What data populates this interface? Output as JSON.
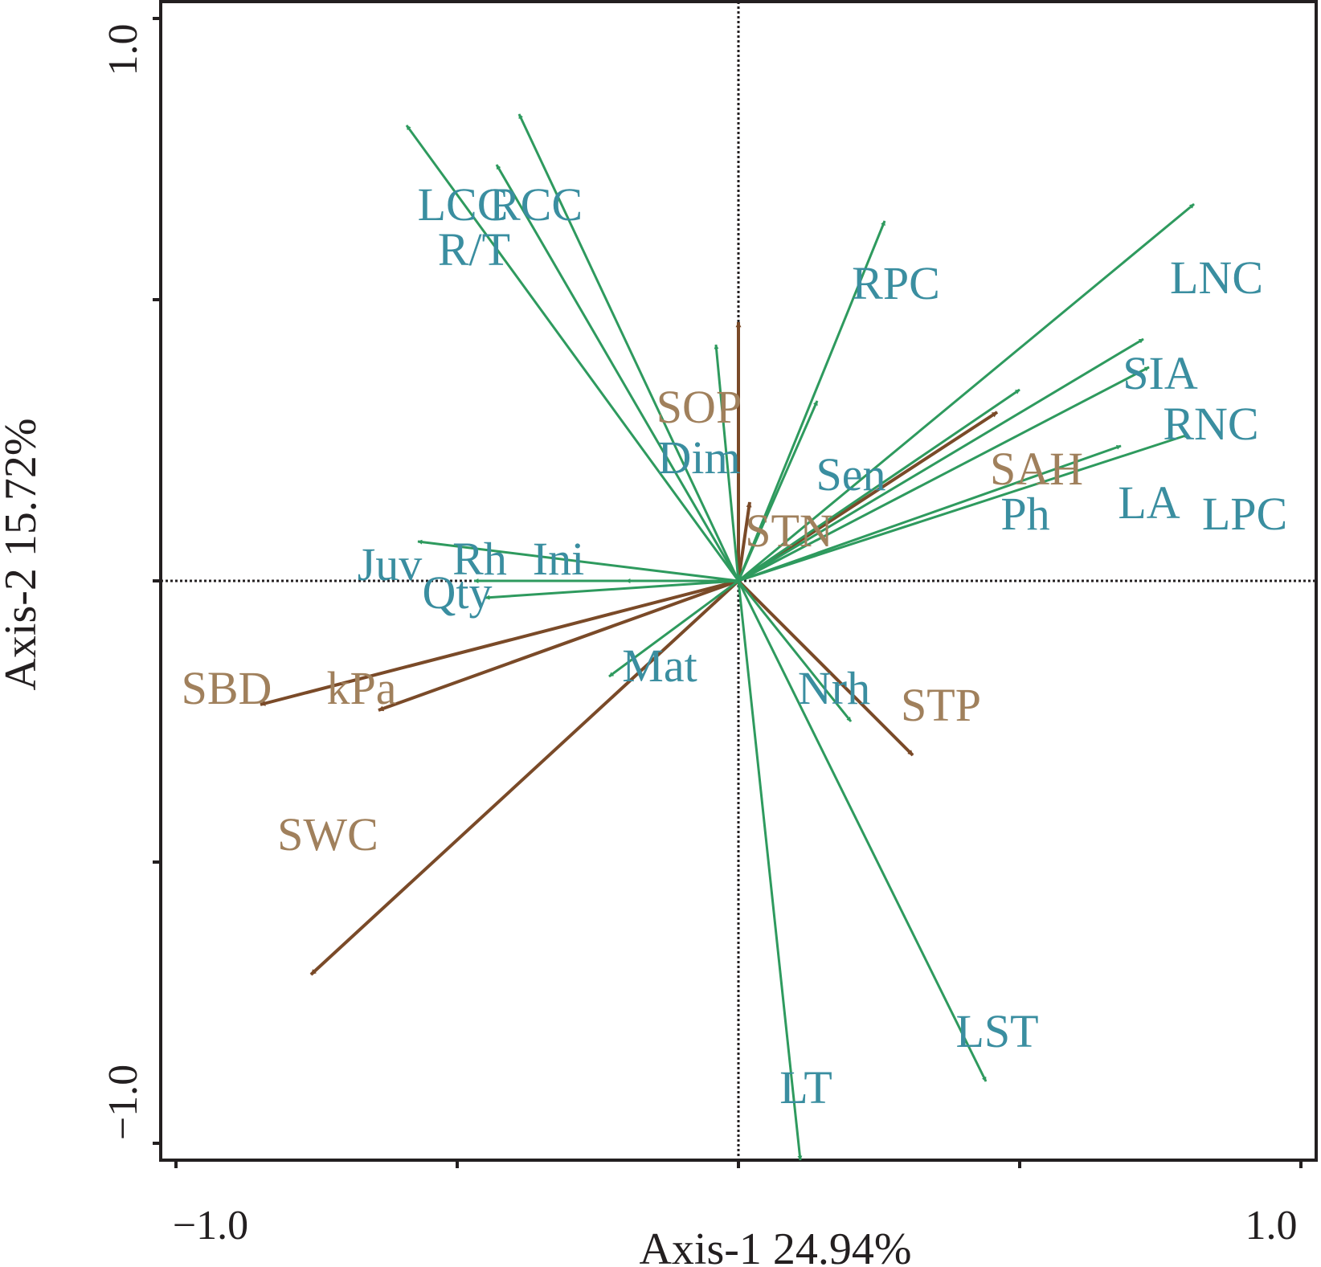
{
  "chart_data": {
    "type": "scatter",
    "subtype": "biplot-vectors",
    "xlabel": "Axis-1 24.94%",
    "ylabel": "Axis-2 15.72%",
    "xlim": [
      -1.0,
      1.0
    ],
    "ylim": [
      -1.0,
      1.0
    ],
    "x_tick_labels": [
      "−1.0",
      "1.0"
    ],
    "y_tick_labels": [
      "1.0",
      "−1.0"
    ],
    "grid": false,
    "zero_lines": "dotted",
    "colors": {
      "trait": "#3a8ea0",
      "trait_arrow": "#2e9a5e",
      "environment": "#a0805c",
      "environment_arrow": "#7a4a28",
      "axis": "#231f20"
    },
    "series": [
      {
        "group": "trait",
        "vectors": [
          {
            "label": "LCC",
            "x": -0.59,
            "y": 0.81
          },
          {
            "label": "RCC",
            "x": -0.39,
            "y": 0.83
          },
          {
            "label": "R/T",
            "x": -0.43,
            "y": 0.74
          },
          {
            "label": "RPC",
            "x": 0.26,
            "y": 0.64
          },
          {
            "label": "LNC",
            "x": 0.81,
            "y": 0.67
          },
          {
            "label": "SIA",
            "x": 0.72,
            "y": 0.43
          },
          {
            "label": "RNC",
            "x": 0.73,
            "y": 0.38
          },
          {
            "label": "Dim",
            "x": -0.04,
            "y": 0.42
          },
          {
            "label": "Sen",
            "x": 0.14,
            "y": 0.32
          },
          {
            "label": "Ph",
            "x": 0.5,
            "y": 0.34
          },
          {
            "label": "LA",
            "x": 0.68,
            "y": 0.24
          },
          {
            "label": "LPC",
            "x": 0.8,
            "y": 0.26
          },
          {
            "label": "Juv",
            "x": -0.57,
            "y": 0.07
          },
          {
            "label": "Rh",
            "x": -0.47,
            "y": 0.0
          },
          {
            "label": "Ini",
            "x": -0.2,
            "y": 0.0
          },
          {
            "label": "Qty",
            "x": -0.45,
            "y": -0.03
          },
          {
            "label": "Mat",
            "x": -0.23,
            "y": -0.17
          },
          {
            "label": "Nrh",
            "x": 0.2,
            "y": -0.25
          },
          {
            "label": "LT",
            "x": 0.11,
            "y": -1.03
          },
          {
            "label": "LST",
            "x": 0.44,
            "y": -0.89
          }
        ]
      },
      {
        "group": "environment",
        "vectors": [
          {
            "label": "SOP",
            "x": 0.0,
            "y": 0.46
          },
          {
            "label": "SAH",
            "x": 0.46,
            "y": 0.3
          },
          {
            "label": "STN",
            "x": 0.02,
            "y": 0.14
          },
          {
            "label": "SBD",
            "x": -0.85,
            "y": -0.22
          },
          {
            "label": "kPa",
            "x": -0.64,
            "y": -0.23
          },
          {
            "label": "SWC",
            "x": -0.76,
            "y": -0.7
          },
          {
            "label": "STP",
            "x": 0.31,
            "y": -0.31
          }
        ]
      }
    ]
  }
}
